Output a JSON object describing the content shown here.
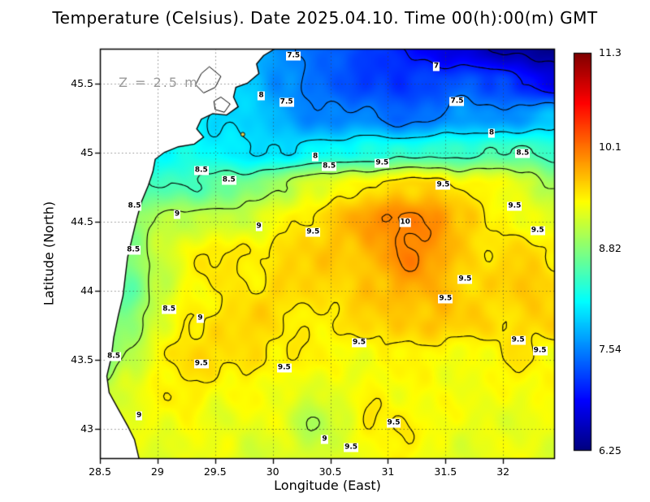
{
  "title": "Temperature (Celsius). Date 2025.04.10. Time 00(h):00(m) GMT",
  "annotation": "Z = 2.5 m",
  "axes": {
    "xlabel": "Longitude (East)",
    "ylabel": "Latitude (North)",
    "x_ticks": [
      {
        "label": "28.5",
        "value": 28.5
      },
      {
        "label": "29",
        "value": 29
      },
      {
        "label": "29.5",
        "value": 29.5
      },
      {
        "label": "30",
        "value": 30
      },
      {
        "label": "30.5",
        "value": 30.5
      },
      {
        "label": "31",
        "value": 31
      },
      {
        "label": "31.5",
        "value": 31.5
      },
      {
        "label": "32",
        "value": 32
      }
    ],
    "y_ticks": [
      {
        "label": "45.5",
        "value": 45.5
      },
      {
        "label": "45",
        "value": 45
      },
      {
        "label": "44.5",
        "value": 44.5
      },
      {
        "label": "44",
        "value": 44
      },
      {
        "label": "43.5",
        "value": 43.5
      },
      {
        "label": "43",
        "value": 43
      }
    ]
  },
  "colorbar": {
    "vmin": 6.25,
    "vmax": 11.3,
    "ticks": [
      {
        "label": "11.3",
        "value": 11.3
      },
      {
        "label": "10.1",
        "value": 10.1
      },
      {
        "label": "8.82",
        "value": 8.82
      },
      {
        "label": "7.54",
        "value": 7.54
      },
      {
        "label": "6.25",
        "value": 6.25
      }
    ]
  },
  "chart_data": {
    "type": "heatmap",
    "title": "Temperature (Celsius). Date 2025.04.10. Time 00(h):00(m) GMT",
    "xlabel": "Longitude (East)",
    "ylabel": "Latitude (North)",
    "units": "Celsius",
    "depth_label": "Z = 2.5 m",
    "xlim": [
      28.5,
      32.45
    ],
    "ylim": [
      42.78,
      45.75
    ],
    "value_range": [
      6.25,
      11.3
    ],
    "colormap": "jet",
    "grid": {
      "lon_min": 28.5,
      "lon_max": 32.45,
      "lat_min": 42.78,
      "lat_max": 45.75,
      "nx": 16,
      "ny": 13,
      "values_north_to_south": [
        [
          8.0,
          8.0,
          8.0,
          8.0,
          7.9,
          7.8,
          7.6,
          7.4,
          7.3,
          7.2,
          7.0,
          6.8,
          6.7,
          6.5,
          6.4,
          6.3
        ],
        [
          8.1,
          8.1,
          8.1,
          8.1,
          8.0,
          7.9,
          7.6,
          7.4,
          7.3,
          7.2,
          7.1,
          7.2,
          7.4,
          7.2,
          7.0,
          6.8
        ],
        [
          8.2,
          8.2,
          8.2,
          8.1,
          8.0,
          7.9,
          7.7,
          7.6,
          7.5,
          7.5,
          7.4,
          7.5,
          7.6,
          7.6,
          7.7,
          7.8
        ],
        [
          8.4,
          8.3,
          8.2,
          8.2,
          8.1,
          8.0,
          8.0,
          8.1,
          8.2,
          8.3,
          8.3,
          8.4,
          8.4,
          8.5,
          8.5,
          8.4
        ],
        [
          8.6,
          8.6,
          8.5,
          8.5,
          8.6,
          8.8,
          9.0,
          9.2,
          9.4,
          9.5,
          9.6,
          9.6,
          9.5,
          9.4,
          9.2,
          9.0
        ],
        [
          8.7,
          8.8,
          9.0,
          9.1,
          9.2,
          9.1,
          9.4,
          9.6,
          9.7,
          9.9,
          10.1,
          10.0,
          9.6,
          9.5,
          9.4,
          9.2
        ],
        [
          8.6,
          8.8,
          9.2,
          9.4,
          9.5,
          9.5,
          9.6,
          9.6,
          9.7,
          9.8,
          10.0,
          9.9,
          9.7,
          9.5,
          9.6,
          9.5
        ],
        [
          8.9,
          8.6,
          9.1,
          9.4,
          9.5,
          9.5,
          9.6,
          9.6,
          9.6,
          9.7,
          9.8,
          9.8,
          9.6,
          9.6,
          9.7,
          9.6
        ],
        [
          9.0,
          8.8,
          9.2,
          9.5,
          9.6,
          9.6,
          9.5,
          9.5,
          9.5,
          9.6,
          9.7,
          9.7,
          9.6,
          9.6,
          9.6,
          9.6
        ],
        [
          8.6,
          9.0,
          9.5,
          9.6,
          9.5,
          9.6,
          9.5,
          9.4,
          9.4,
          9.4,
          9.4,
          9.4,
          9.4,
          9.4,
          9.5,
          9.4
        ],
        [
          9.1,
          9.3,
          9.4,
          9.5,
          9.4,
          9.4,
          9.3,
          9.3,
          9.3,
          9.4,
          9.4,
          9.4,
          9.3,
          9.4,
          9.4,
          9.4
        ],
        [
          9.2,
          9.3,
          9.3,
          9.4,
          9.3,
          9.3,
          9.3,
          9.0,
          9.2,
          9.5,
          9.5,
          9.4,
          9.3,
          9.3,
          9.3,
          9.3
        ],
        [
          9.3,
          9.3,
          9.3,
          9.3,
          9.3,
          9.2,
          9.3,
          9.1,
          9.3,
          9.4,
          9.4,
          9.3,
          9.3,
          9.3,
          9.3,
          9.3
        ]
      ]
    },
    "contour_levels": [
      6.5,
      7,
      7.5,
      8,
      8.5,
      9,
      9.5,
      10
    ],
    "contour_labels": [
      {
        "lon": 30.18,
        "lat": 45.7,
        "text": "7.5"
      },
      {
        "lon": 31.42,
        "lat": 45.62,
        "text": "7"
      },
      {
        "lon": 29.9,
        "lat": 45.41,
        "text": "8"
      },
      {
        "lon": 30.12,
        "lat": 45.36,
        "text": "7.5"
      },
      {
        "lon": 31.6,
        "lat": 45.37,
        "text": "7.5"
      },
      {
        "lon": 31.9,
        "lat": 45.14,
        "text": "8"
      },
      {
        "lon": 30.37,
        "lat": 44.97,
        "text": "8"
      },
      {
        "lon": 30.49,
        "lat": 44.9,
        "text": "8.5"
      },
      {
        "lon": 32.17,
        "lat": 44.99,
        "text": "8.5"
      },
      {
        "lon": 29.38,
        "lat": 44.87,
        "text": "8.5"
      },
      {
        "lon": 29.62,
        "lat": 44.8,
        "text": "8.5"
      },
      {
        "lon": 30.95,
        "lat": 44.92,
        "text": "9.5"
      },
      {
        "lon": 28.8,
        "lat": 44.61,
        "text": "8.5"
      },
      {
        "lon": 29.17,
        "lat": 44.55,
        "text": "9"
      },
      {
        "lon": 31.48,
        "lat": 44.76,
        "text": "9.5"
      },
      {
        "lon": 32.1,
        "lat": 44.61,
        "text": "9.5"
      },
      {
        "lon": 32.3,
        "lat": 44.43,
        "text": "9.5"
      },
      {
        "lon": 31.15,
        "lat": 44.49,
        "text": "10"
      },
      {
        "lon": 29.88,
        "lat": 44.46,
        "text": "9"
      },
      {
        "lon": 30.35,
        "lat": 44.42,
        "text": "9.5"
      },
      {
        "lon": 28.79,
        "lat": 44.29,
        "text": "8.5"
      },
      {
        "lon": 31.67,
        "lat": 44.08,
        "text": "9.5"
      },
      {
        "lon": 29.1,
        "lat": 43.86,
        "text": "8.5"
      },
      {
        "lon": 29.37,
        "lat": 43.8,
        "text": "9"
      },
      {
        "lon": 31.5,
        "lat": 43.94,
        "text": "9.5"
      },
      {
        "lon": 30.75,
        "lat": 43.62,
        "text": "9.5"
      },
      {
        "lon": 32.13,
        "lat": 43.64,
        "text": "9.5"
      },
      {
        "lon": 28.62,
        "lat": 43.52,
        "text": "8.5"
      },
      {
        "lon": 29.38,
        "lat": 43.47,
        "text": "9.5"
      },
      {
        "lon": 30.1,
        "lat": 43.44,
        "text": "9.5"
      },
      {
        "lon": 32.32,
        "lat": 43.56,
        "text": "9.5"
      },
      {
        "lon": 28.84,
        "lat": 43.09,
        "text": "9"
      },
      {
        "lon": 31.05,
        "lat": 43.04,
        "text": "9.5"
      },
      {
        "lon": 30.45,
        "lat": 42.92,
        "text": "9"
      },
      {
        "lon": 30.68,
        "lat": 42.86,
        "text": "9.5"
      }
    ],
    "land_polygon": [
      [
        28.5,
        45.75
      ],
      [
        30.02,
        45.75
      ],
      [
        29.92,
        45.7
      ],
      [
        29.86,
        45.64
      ],
      [
        29.88,
        45.57
      ],
      [
        29.78,
        45.5
      ],
      [
        29.68,
        45.47
      ],
      [
        29.66,
        45.4
      ],
      [
        29.7,
        45.33
      ],
      [
        29.6,
        45.27
      ],
      [
        29.48,
        45.28
      ],
      [
        29.38,
        45.24
      ],
      [
        29.34,
        45.17
      ],
      [
        29.4,
        45.11
      ],
      [
        29.32,
        45.06
      ],
      [
        29.18,
        45.04
      ],
      [
        29.06,
        45.0
      ],
      [
        28.98,
        44.95
      ],
      [
        28.96,
        44.86
      ],
      [
        28.92,
        44.76
      ],
      [
        28.86,
        44.64
      ],
      [
        28.82,
        44.52
      ],
      [
        28.78,
        44.38
      ],
      [
        28.74,
        44.24
      ],
      [
        28.72,
        44.1
      ],
      [
        28.7,
        43.96
      ],
      [
        28.66,
        43.82
      ],
      [
        28.62,
        43.66
      ],
      [
        28.6,
        43.52
      ],
      [
        28.56,
        43.38
      ],
      [
        28.58,
        43.26
      ],
      [
        28.66,
        43.14
      ],
      [
        28.74,
        43.02
      ],
      [
        28.8,
        42.92
      ],
      [
        28.84,
        42.78
      ],
      [
        28.5,
        42.78
      ]
    ],
    "lakes": [
      [
        [
          29.45,
          45.62
        ],
        [
          29.55,
          45.55
        ],
        [
          29.5,
          45.47
        ],
        [
          29.4,
          45.43
        ],
        [
          29.33,
          45.49
        ],
        [
          29.38,
          45.57
        ],
        [
          29.45,
          45.62
        ]
      ],
      [
        [
          29.55,
          45.4
        ],
        [
          29.63,
          45.35
        ],
        [
          29.58,
          45.29
        ],
        [
          29.5,
          45.31
        ],
        [
          29.49,
          45.37
        ],
        [
          29.55,
          45.4
        ]
      ]
    ],
    "island": {
      "lon": 29.74,
      "lat": 45.13
    }
  }
}
